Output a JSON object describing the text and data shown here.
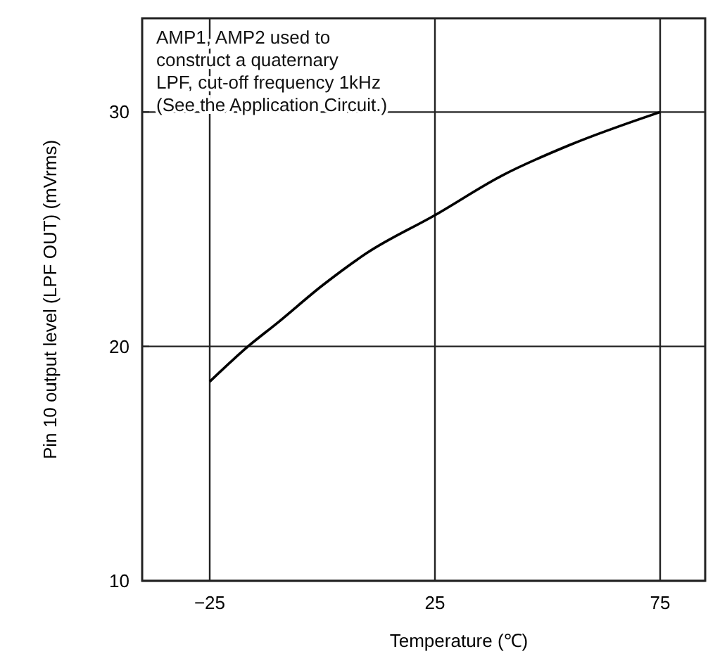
{
  "chart_data": {
    "type": "line",
    "xlabel": "Temperature (℃)",
    "ylabel": "Pin 10 output level (LPF OUT) (mVrms)",
    "x": [
      -25,
      -16.5,
      -10,
      0,
      10,
      25,
      40,
      55,
      75
    ],
    "series": [
      {
        "color": "#000000",
        "values": [
          18.5,
          20,
          21.0,
          22.6,
          24.0,
          25.6,
          27.3,
          28.6,
          30
        ]
      }
    ],
    "xlim": [
      -40,
      85
    ],
    "ylim": [
      10,
      34
    ],
    "xticks": [
      {
        "value": -25,
        "label": "−25"
      },
      25,
      75
    ],
    "yticks": [
      10,
      20,
      30
    ],
    "grid": true,
    "annotations": [
      "AMP1, AMP2 used to\nconstruct a quaternary\nLPF, cut-off frequency 1kHz\n(See the Application Circuit.)"
    ]
  }
}
